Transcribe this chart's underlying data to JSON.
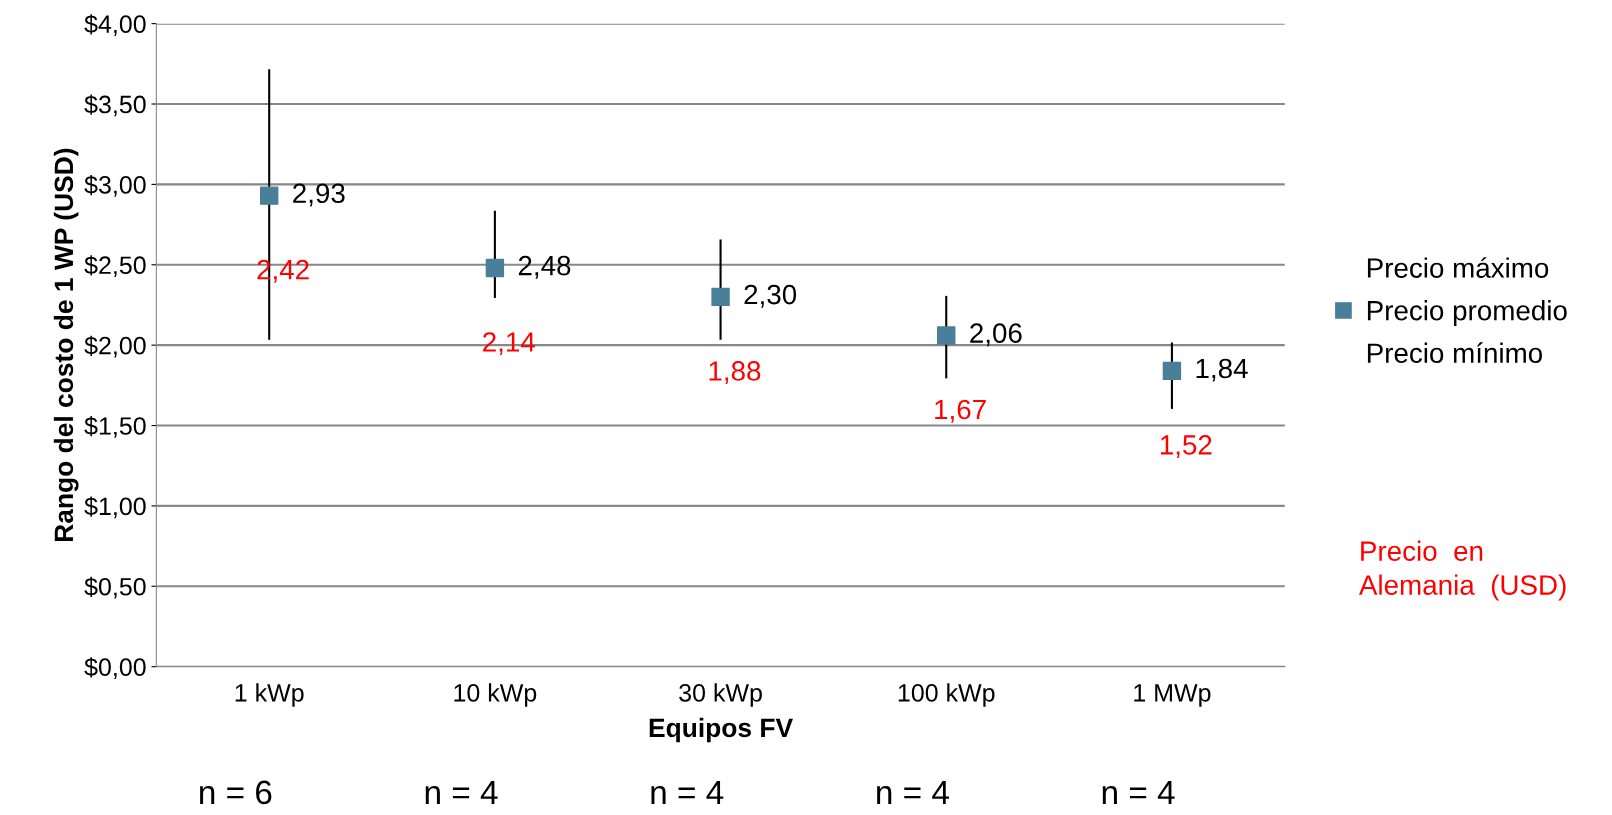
{
  "chart_data": {
    "type": "scatter",
    "xlabel": "Equipos FV",
    "ylabel": "Rango del costo de 1 WP (USD)",
    "categories": [
      "1 kWp",
      "10 kWp",
      "30 kWp",
      "100 kWp",
      "1 MWp"
    ],
    "series": [
      {
        "name": "Precio máximo",
        "marker": "none",
        "values": [
          null,
          null,
          null,
          null,
          null
        ]
      },
      {
        "name": "Precio promedio",
        "color": "#4a7f9a",
        "marker": "square",
        "values": [
          2.93,
          2.48,
          2.3,
          2.06,
          1.84
        ],
        "value_labels": [
          "2,93",
          "2,48",
          "2,30",
          "2,06",
          "1,84"
        ],
        "errors": [
          [
            2.04,
            3.71
          ],
          [
            2.3,
            2.83
          ],
          [
            2.04,
            2.65
          ],
          [
            1.8,
            2.3
          ],
          [
            1.61,
            2.01
          ]
        ]
      },
      {
        "name": "Precio mínimo",
        "marker": "none",
        "values": [
          null,
          null,
          null,
          null,
          null
        ]
      }
    ],
    "ylim": [
      0,
      4
    ],
    "yticks": [
      {
        "value": 0,
        "label": "$0,00"
      },
      {
        "value": 0.5,
        "label": "$0,50"
      },
      {
        "value": 1,
        "label": "$1,00"
      },
      {
        "value": 1.5,
        "label": "$1,50"
      },
      {
        "value": 2,
        "label": "$2,00"
      },
      {
        "value": 2.5,
        "label": "$2,50"
      },
      {
        "value": 3,
        "label": "$3,00"
      },
      {
        "value": 3.5,
        "label": "$3,50"
      },
      {
        "value": 4,
        "label": "$4,00"
      }
    ],
    "grid": "y",
    "legend": "right",
    "annotations": [
      "n = 6",
      "n = 4",
      "n = 4",
      "n = 4",
      "n = 4",
      "Precio  en\nAlemania  (USD)",
      "2,42",
      "2,14",
      "1,88",
      "1,67",
      "1,52"
    ]
  }
}
